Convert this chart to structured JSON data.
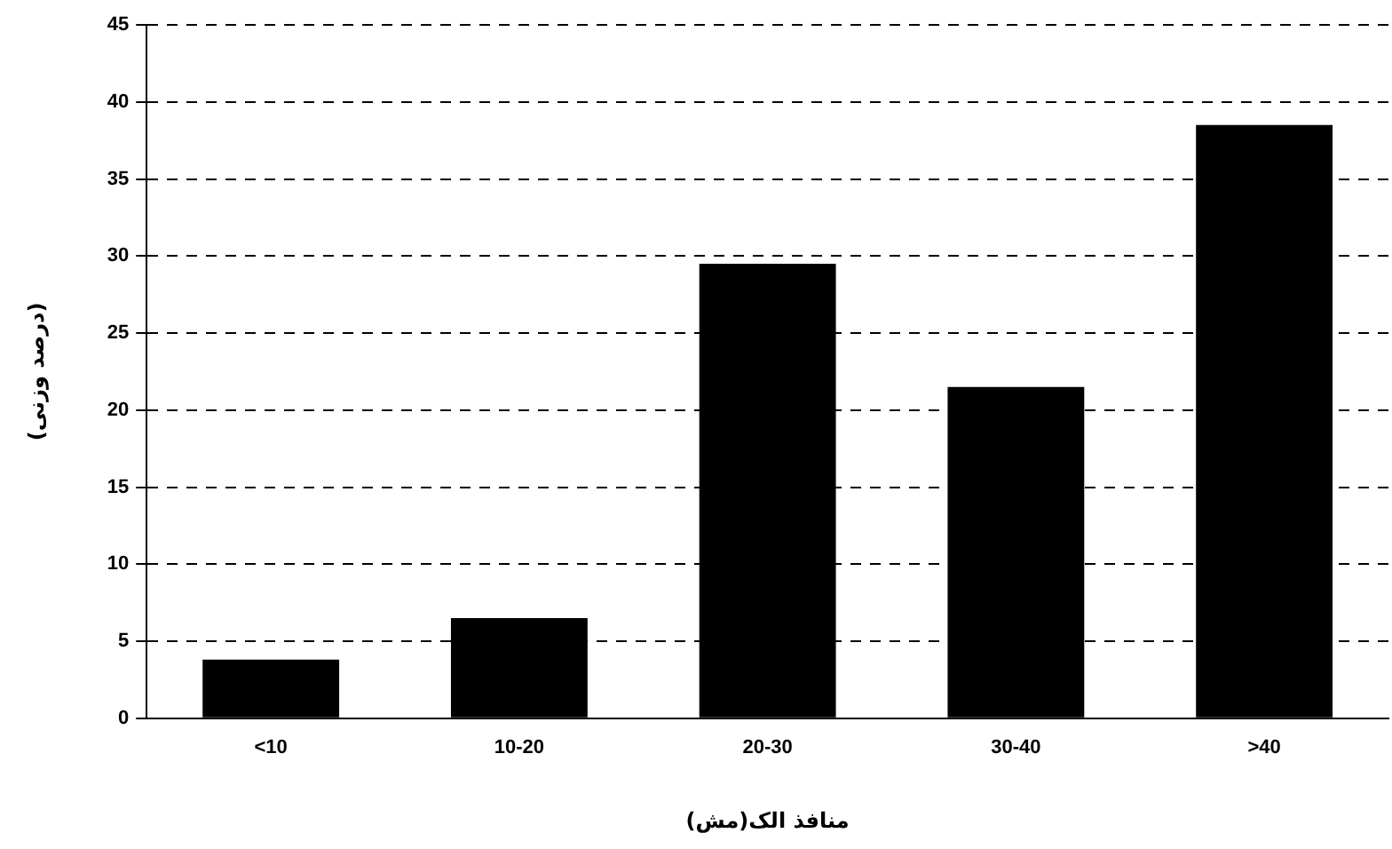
{
  "chart_data": {
    "type": "bar",
    "xlabel": "منافذ الک(مش)",
    "ylabel": "(درصد وزنی)",
    "categories": [
      "<10",
      "10-20",
      "20-30",
      "30-40",
      ">40"
    ],
    "values": [
      3.8,
      6.5,
      29.5,
      21.5,
      38.5
    ],
    "color": "#000000",
    "ylim": [
      0,
      45
    ],
    "yticks": [
      0,
      5,
      10,
      15,
      20,
      25,
      30,
      35,
      40,
      45
    ],
    "grid": "y",
    "line_style": "dashed",
    "legend": false
  }
}
